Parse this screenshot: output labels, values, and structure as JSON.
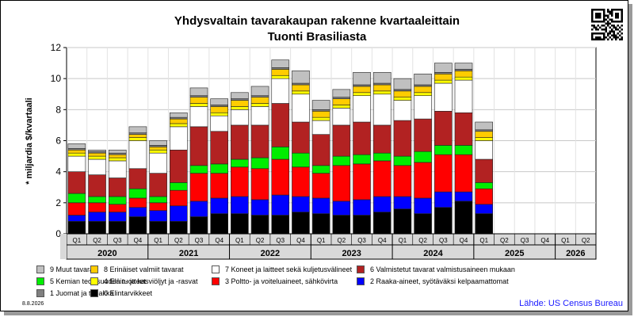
{
  "header": {
    "title": "Yhdysvaltain tavarakaupan rakenne kvartaaleittain",
    "subtitle": "Tuonti Brasiliasta"
  },
  "footer": {
    "date": "8.8.2026",
    "source": "Lähde: US Census Bureau"
  },
  "chart_data": {
    "type": "bar",
    "stacked": true,
    "ylabel": "* miljardia $/kvartaali",
    "ylim": [
      0,
      12
    ],
    "yticks": [
      0,
      2,
      4,
      6,
      8,
      10,
      12
    ],
    "grid": true,
    "quarter_labels": [
      "Q1",
      "Q2",
      "Q3",
      "Q4",
      "Q1",
      "Q2",
      "Q3",
      "Q4",
      "Q1",
      "Q2",
      "Q3",
      "Q4",
      "Q1",
      "Q2",
      "Q3",
      "Q4",
      "Q1",
      "Q2",
      "Q3",
      "Q4",
      "Q1",
      "Q2",
      "Q3",
      "Q4",
      "Q1",
      "Q2"
    ],
    "years": [
      "2020",
      "2021",
      "2022",
      "2023",
      "2024",
      "2025",
      "2026"
    ],
    "categories": [
      "2020 Q1",
      "2020 Q2",
      "2020 Q3",
      "2020 Q4",
      "2021 Q1",
      "2021 Q2",
      "2021 Q3",
      "2021 Q4",
      "2022 Q1",
      "2022 Q2",
      "2022 Q3",
      "2022 Q4",
      "2023 Q1",
      "2023 Q2",
      "2023 Q3",
      "2023 Q4",
      "2024 Q1",
      "2024 Q2",
      "2024 Q3",
      "2024 Q4",
      "2025 Q1",
      "2025 Q2",
      "2025 Q3",
      "2025 Q4",
      "2026 Q1",
      "2026 Q2"
    ],
    "series": [
      {
        "name": "0 Elintarvikkeet",
        "color": "#000000",
        "values": [
          0.8,
          0.8,
          0.8,
          1.1,
          0.8,
          0.8,
          1.1,
          1.3,
          1.3,
          1.2,
          1.2,
          1.4,
          1.3,
          1.2,
          1.2,
          1.4,
          1.6,
          1.3,
          1.7,
          2.1,
          1.3,
          null,
          null,
          null,
          null,
          null
        ]
      },
      {
        "name": "2 Raaka-aineet, syötäväksi kelpaamattomat",
        "color": "#0000ff",
        "values": [
          0.4,
          0.6,
          0.6,
          0.6,
          0.7,
          1.0,
          1.0,
          1.0,
          1.1,
          1.0,
          1.3,
          1.0,
          1.0,
          0.9,
          1.0,
          1.0,
          0.8,
          1.0,
          1.0,
          0.6,
          0.6,
          null,
          null,
          null,
          null,
          null
        ]
      },
      {
        "name": "3 Poltto- ja voiteluaineet, sähkövirta",
        "color": "#ff0000",
        "values": [
          0.8,
          0.6,
          0.5,
          0.6,
          0.5,
          1.0,
          1.8,
          1.6,
          1.9,
          2.0,
          2.3,
          1.9,
          1.6,
          2.3,
          2.3,
          2.3,
          2.0,
          2.3,
          2.4,
          2.4,
          1.0,
          null,
          null,
          null,
          null,
          null
        ]
      },
      {
        "name": "5 Kemian teollisuuden tuotteet",
        "color": "#00ee00",
        "values": [
          0.6,
          0.4,
          0.5,
          0.6,
          0.4,
          0.5,
          0.5,
          0.6,
          0.5,
          0.7,
          0.8,
          0.9,
          0.5,
          0.6,
          0.6,
          0.5,
          0.6,
          0.7,
          0.6,
          0.6,
          0.4,
          null,
          null,
          null,
          null,
          null
        ]
      },
      {
        "name": "6 Valmistetut tavarat valmistusaineen mukaan",
        "color": "#b22222",
        "values": [
          1.4,
          1.4,
          1.2,
          1.3,
          1.5,
          2.1,
          2.5,
          2.1,
          2.2,
          2.1,
          2.8,
          2.0,
          2.0,
          2.0,
          2.1,
          1.8,
          2.3,
          2.1,
          2.2,
          2.1,
          1.5,
          null,
          null,
          null,
          null,
          null
        ]
      },
      {
        "name": "7 Koneet ja laitteet sekä kuljetusvälineet",
        "color": "#ffffff",
        "values": [
          1.0,
          1.0,
          1.1,
          1.8,
          1.3,
          1.5,
          1.3,
          1.0,
          1.0,
          1.2,
          1.6,
          1.8,
          0.9,
          1.1,
          1.7,
          2.0,
          1.3,
          1.5,
          1.8,
          2.1,
          1.2,
          null,
          null,
          null,
          null,
          null
        ]
      },
      {
        "name": "4 Eläin- ja kasviöljyt ja -rasvat",
        "color": "#ffff00",
        "values": [
          0.2,
          0.2,
          0.2,
          0.2,
          0.2,
          0.2,
          0.2,
          0.2,
          0.2,
          0.2,
          0.2,
          0.2,
          0.2,
          0.2,
          0.2,
          0.2,
          0.2,
          0.2,
          0.2,
          0.2,
          0.2,
          null,
          null,
          null,
          null,
          null
        ]
      },
      {
        "name": "8 Erinäiset valmiit tavarat",
        "color": "#ffcc00",
        "values": [
          0.2,
          0.2,
          0.2,
          0.2,
          0.2,
          0.3,
          0.4,
          0.4,
          0.4,
          0.4,
          0.4,
          0.4,
          0.4,
          0.4,
          0.4,
          0.4,
          0.4,
          0.4,
          0.4,
          0.4,
          0.4,
          null,
          null,
          null,
          null,
          null
        ]
      },
      {
        "name": "1 Juomat ja tupakka",
        "color": "#808080",
        "values": [
          0.1,
          0.1,
          0.1,
          0.1,
          0.1,
          0.1,
          0.1,
          0.1,
          0.1,
          0.1,
          0.1,
          0.1,
          0.1,
          0.1,
          0.1,
          0.1,
          0.1,
          0.1,
          0.1,
          0.1,
          0.1,
          null,
          null,
          null,
          null,
          null
        ]
      },
      {
        "name": "9 Muut tavarat",
        "color": "#c0c0c0",
        "values": [
          0.3,
          0.1,
          0.2,
          0.4,
          0.3,
          0.3,
          0.5,
          0.4,
          0.4,
          0.6,
          0.5,
          0.8,
          0.6,
          0.5,
          0.8,
          0.7,
          0.7,
          0.7,
          0.6,
          0.4,
          0.5,
          null,
          null,
          null,
          null,
          null
        ]
      }
    ],
    "legend": {
      "placement": "bottom",
      "rows": [
        [
          {
            "name": "9 Muut tavarat",
            "color": "#c0c0c0"
          },
          {
            "name": "8 Erinäiset valmiit tavarat",
            "color": "#ffcc00"
          },
          {
            "name": "7 Koneet ja laitteet sekä kuljetusvälineet",
            "color": "#ffffff"
          },
          {
            "name": "6 Valmistetut tavarat valmistusaineen mukaan",
            "color": "#b22222"
          }
        ],
        [
          {
            "name": "5 Kemian teollisuuden tuotteet",
            "color": "#00ee00"
          },
          {
            "name": "4 Eläin- ja kasviöljyt ja -rasvat",
            "color": "#ffff00"
          },
          {
            "name": "3 Poltto- ja voiteluaineet, sähkövirta",
            "color": "#ff0000"
          },
          {
            "name": "2 Raaka-aineet, syötäväksi kelpaamattomat",
            "color": "#0000ff"
          }
        ],
        [
          {
            "name": "1 Juomat ja tupakka",
            "color": "#808080"
          },
          {
            "name": "0 Elintarvikkeet",
            "color": "#000000"
          }
        ]
      ]
    }
  }
}
